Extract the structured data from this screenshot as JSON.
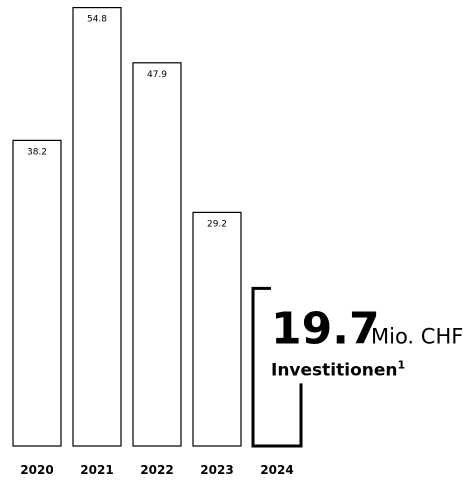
{
  "chart_data": {
    "type": "bar",
    "categories": [
      "2020",
      "2021",
      "2022",
      "2023",
      "2024"
    ],
    "values": [
      38.2,
      54.8,
      47.9,
      29.2,
      19.7
    ],
    "color": "#000000",
    "ylim": [
      0,
      55
    ],
    "highlight_index": 4,
    "highlight_unit": "Mio. CHF",
    "highlight_label": "Investitionen",
    "highlight_footnote": "1"
  }
}
